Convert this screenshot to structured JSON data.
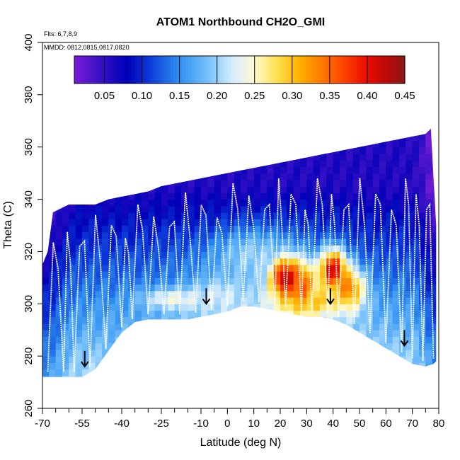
{
  "chart_data": {
    "type": "heatmap",
    "title": "ATOM1 Northbound CH2O_GMI",
    "annotations": {
      "flights": "Flts: 6,7,8,9",
      "dates": "MMDD: 0812,0815,0817,0820"
    },
    "xlabel": "Latitude (deg N)",
    "ylabel": "Theta (C)",
    "xlim": [
      -70,
      80
    ],
    "ylim": [
      260,
      400
    ],
    "x_ticks": [
      -70,
      -55,
      -40,
      -25,
      -10,
      0,
      10,
      20,
      30,
      40,
      50,
      60,
      70,
      80
    ],
    "x_minor_ticks": [
      -65,
      -60,
      -50,
      -45,
      -35,
      -30,
      -20,
      -15,
      -5,
      5,
      15,
      25,
      35,
      45,
      55,
      65,
      75
    ],
    "y_ticks": [
      260,
      280,
      300,
      320,
      340,
      360,
      380,
      400
    ],
    "grid": false,
    "colorbar": {
      "range": [
        0.01,
        0.45
      ],
      "tick_values": [
        0.05,
        0.1,
        0.15,
        0.2,
        0.25,
        0.3,
        0.35,
        0.4,
        0.45
      ],
      "tick_labels": [
        "0.05",
        "0.10",
        "0.15",
        "0.20",
        "0.25",
        "0.30",
        "0.35",
        "0.40",
        "0.45"
      ],
      "colors": [
        "#7a1bd8",
        "#4013c8",
        "#0000b8",
        "#0c3ad8",
        "#2f8ff0",
        "#7cc4fb",
        "#d5ecff",
        "#fffad0",
        "#ffe050",
        "#ffb000",
        "#ff7800",
        "#ff4000",
        "#ea0a00",
        "#b30a0a",
        "#8a1717"
      ],
      "color_stops": [
        0.01,
        0.04,
        0.08,
        0.11,
        0.15,
        0.19,
        0.22,
        0.25,
        0.28,
        0.31,
        0.34,
        0.37,
        0.4,
        0.43,
        0.45
      ]
    },
    "field": {
      "bottom_boundary": [
        [
          -70,
          272
        ],
        [
          -62,
          272
        ],
        [
          -58,
          272
        ],
        [
          -55,
          272
        ],
        [
          -50,
          275
        ],
        [
          -45,
          282
        ],
        [
          -40,
          289
        ],
        [
          -35,
          293
        ],
        [
          -30,
          294
        ],
        [
          -25,
          294
        ],
        [
          -20,
          294
        ],
        [
          -15,
          294
        ],
        [
          -10,
          295
        ],
        [
          -5,
          296
        ],
        [
          0,
          297
        ],
        [
          5,
          299
        ],
        [
          10,
          299
        ],
        [
          15,
          298
        ],
        [
          20,
          297
        ],
        [
          25,
          296
        ],
        [
          30,
          295
        ],
        [
          35,
          295
        ],
        [
          40,
          294
        ],
        [
          45,
          292
        ],
        [
          50,
          289
        ],
        [
          55,
          286
        ],
        [
          60,
          283
        ],
        [
          65,
          280
        ],
        [
          70,
          277
        ],
        [
          75,
          276
        ],
        [
          78,
          277
        ]
      ],
      "top_boundary": [
        [
          -70,
          315
        ],
        [
          -68,
          320
        ],
        [
          -66,
          335
        ],
        [
          -60,
          338
        ],
        [
          -50,
          338
        ],
        [
          -45,
          340
        ],
        [
          -40,
          341
        ],
        [
          -35,
          342
        ],
        [
          -30,
          343
        ],
        [
          -25,
          345
        ],
        [
          -20,
          346
        ],
        [
          -15,
          347
        ],
        [
          -10,
          348
        ],
        [
          -5,
          349
        ],
        [
          0,
          350
        ],
        [
          5,
          351
        ],
        [
          10,
          352
        ],
        [
          15,
          353
        ],
        [
          20,
          354
        ],
        [
          25,
          355
        ],
        [
          30,
          356
        ],
        [
          35,
          357
        ],
        [
          40,
          358
        ],
        [
          45,
          359
        ],
        [
          50,
          360
        ],
        [
          55,
          361
        ],
        [
          60,
          362
        ],
        [
          65,
          363
        ],
        [
          70,
          364
        ],
        [
          75,
          365
        ],
        [
          77,
          367
        ],
        [
          79,
          330
        ],
        [
          79,
          278
        ]
      ],
      "features": [
        {
          "lat": 22,
          "theta": 310,
          "value": 0.43,
          "spread_lat": 6,
          "spread_theta": 8
        },
        {
          "lat": 28,
          "theta": 307,
          "value": 0.36,
          "spread_lat": 6,
          "spread_theta": 9
        },
        {
          "lat": 40,
          "theta": 313,
          "value": 0.42,
          "spread_lat": 5,
          "spread_theta": 8
        },
        {
          "lat": 46,
          "theta": 306,
          "value": 0.34,
          "spread_lat": 6,
          "spread_theta": 8
        },
        {
          "lat": 32,
          "theta": 301,
          "value": 0.3,
          "spread_lat": 12,
          "spread_theta": 5
        },
        {
          "lat": -20,
          "theta": 302,
          "value": 0.24,
          "spread_lat": 12,
          "spread_theta": 4
        },
        {
          "lat": -3,
          "theta": 303,
          "value": 0.22,
          "spread_lat": 10,
          "spread_theta": 6
        },
        {
          "lat": 10,
          "theta": 318,
          "value": 0.2,
          "spread_lat": 15,
          "spread_theta": 10
        }
      ],
      "flight_track_zigzag_lats": [
        -68,
        -62,
        -58,
        -52,
        -46,
        -40,
        -36,
        -30,
        -24,
        -18,
        -12,
        -6,
        0,
        6,
        12,
        18,
        22,
        28,
        32,
        38,
        42,
        48,
        54,
        60,
        66,
        70,
        74,
        78
      ]
    },
    "markers": {
      "type": "down-arrow",
      "points": [
        [
          -54,
          276
        ],
        [
          -8,
          300
        ],
        [
          39,
          300
        ],
        [
          67,
          284
        ]
      ]
    }
  }
}
